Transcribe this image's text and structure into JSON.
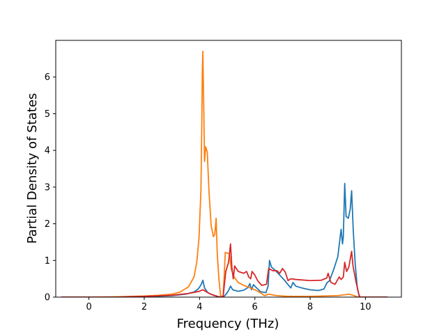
{
  "chart_data": {
    "type": "line",
    "title": "",
    "xlabel": "Frequency (THz)",
    "ylabel": "Partial Density of States",
    "xlim": [
      -1.2,
      11.3
    ],
    "ylim": [
      0,
      7.0
    ],
    "xticks": [
      0,
      2,
      4,
      6,
      8,
      10
    ],
    "yticks": [
      0,
      1,
      2,
      3,
      4,
      5,
      6
    ],
    "grid": false,
    "legend": "none",
    "series": [
      {
        "color": "#1f77b4",
        "points": [
          [
            -1.0,
            0.0
          ],
          [
            0.0,
            0.0
          ],
          [
            1.0,
            0.0
          ],
          [
            2.0,
            0.01
          ],
          [
            3.0,
            0.04
          ],
          [
            3.5,
            0.08
          ],
          [
            3.8,
            0.14
          ],
          [
            3.95,
            0.22
          ],
          [
            4.05,
            0.33
          ],
          [
            4.12,
            0.46
          ],
          [
            4.18,
            0.25
          ],
          [
            4.3,
            0.12
          ],
          [
            4.5,
            0.05
          ],
          [
            4.7,
            0.01
          ],
          [
            4.85,
            0.0
          ],
          [
            4.95,
            0.07
          ],
          [
            5.05,
            0.18
          ],
          [
            5.12,
            0.3
          ],
          [
            5.2,
            0.2
          ],
          [
            5.4,
            0.16
          ],
          [
            5.6,
            0.19
          ],
          [
            5.75,
            0.26
          ],
          [
            5.82,
            0.37
          ],
          [
            5.88,
            0.2
          ],
          [
            5.95,
            0.34
          ],
          [
            6.05,
            0.26
          ],
          [
            6.2,
            0.15
          ],
          [
            6.4,
            0.12
          ],
          [
            6.48,
            0.3
          ],
          [
            6.53,
            1.0
          ],
          [
            6.6,
            0.82
          ],
          [
            6.75,
            0.72
          ],
          [
            6.9,
            0.6
          ],
          [
            7.05,
            0.48
          ],
          [
            7.2,
            0.34
          ],
          [
            7.3,
            0.25
          ],
          [
            7.38,
            0.4
          ],
          [
            7.48,
            0.3
          ],
          [
            7.7,
            0.25
          ],
          [
            8.0,
            0.2
          ],
          [
            8.3,
            0.18
          ],
          [
            8.5,
            0.22
          ],
          [
            8.6,
            0.38
          ],
          [
            8.7,
            0.45
          ],
          [
            8.85,
            0.75
          ],
          [
            9.0,
            1.1
          ],
          [
            9.08,
            1.6
          ],
          [
            9.12,
            1.85
          ],
          [
            9.17,
            1.45
          ],
          [
            9.2,
            1.65
          ],
          [
            9.25,
            3.1
          ],
          [
            9.3,
            2.2
          ],
          [
            9.38,
            2.15
          ],
          [
            9.45,
            2.4
          ],
          [
            9.5,
            2.9
          ],
          [
            9.56,
            1.8
          ],
          [
            9.63,
            0.9
          ],
          [
            9.7,
            0.3
          ],
          [
            9.78,
            0.0
          ],
          [
            10.8,
            0.0
          ]
        ]
      },
      {
        "color": "#ff7f0e",
        "points": [
          [
            -1.0,
            0.0
          ],
          [
            0.0,
            0.0
          ],
          [
            1.0,
            0.01
          ],
          [
            2.0,
            0.03
          ],
          [
            2.5,
            0.05
          ],
          [
            3.0,
            0.08
          ],
          [
            3.3,
            0.14
          ],
          [
            3.6,
            0.28
          ],
          [
            3.8,
            0.55
          ],
          [
            3.9,
            0.95
          ],
          [
            3.98,
            1.6
          ],
          [
            4.05,
            2.9
          ],
          [
            4.08,
            4.6
          ],
          [
            4.1,
            6.1
          ],
          [
            4.12,
            6.7
          ],
          [
            4.15,
            5.3
          ],
          [
            4.18,
            3.7
          ],
          [
            4.22,
            4.1
          ],
          [
            4.28,
            3.95
          ],
          [
            4.34,
            2.9
          ],
          [
            4.42,
            1.95
          ],
          [
            4.5,
            1.65
          ],
          [
            4.55,
            1.7
          ],
          [
            4.6,
            2.15
          ],
          [
            4.64,
            1.2
          ],
          [
            4.7,
            0.5
          ],
          [
            4.76,
            0.05
          ],
          [
            4.85,
            0.0
          ],
          [
            4.9,
            0.7
          ],
          [
            4.93,
            1.22
          ],
          [
            5.0,
            1.2
          ],
          [
            5.08,
            1.18
          ],
          [
            5.15,
            0.75
          ],
          [
            5.25,
            0.55
          ],
          [
            5.4,
            0.4
          ],
          [
            5.6,
            0.32
          ],
          [
            5.8,
            0.26
          ],
          [
            6.0,
            0.2
          ],
          [
            6.2,
            0.12
          ],
          [
            6.35,
            0.04
          ],
          [
            6.5,
            0.08
          ],
          [
            6.8,
            0.04
          ],
          [
            7.2,
            0.02
          ],
          [
            8.0,
            0.02
          ],
          [
            9.0,
            0.04
          ],
          [
            9.4,
            0.08
          ],
          [
            9.55,
            0.05
          ],
          [
            9.7,
            0.01
          ],
          [
            9.8,
            0.0
          ],
          [
            10.8,
            0.0
          ]
        ]
      },
      {
        "color": "#d62728",
        "points": [
          [
            -1.0,
            0.0
          ],
          [
            0.0,
            0.0
          ],
          [
            1.0,
            0.0
          ],
          [
            2.0,
            0.02
          ],
          [
            3.0,
            0.05
          ],
          [
            3.6,
            0.1
          ],
          [
            4.0,
            0.16
          ],
          [
            4.12,
            0.2
          ],
          [
            4.4,
            0.08
          ],
          [
            4.7,
            0.01
          ],
          [
            4.85,
            0.0
          ],
          [
            4.95,
            0.7
          ],
          [
            5.05,
            0.95
          ],
          [
            5.12,
            1.45
          ],
          [
            5.17,
            0.8
          ],
          [
            5.22,
            0.5
          ],
          [
            5.27,
            0.85
          ],
          [
            5.4,
            0.7
          ],
          [
            5.6,
            0.65
          ],
          [
            5.7,
            0.7
          ],
          [
            5.78,
            0.55
          ],
          [
            5.85,
            0.5
          ],
          [
            5.9,
            0.7
          ],
          [
            6.0,
            0.6
          ],
          [
            6.1,
            0.45
          ],
          [
            6.25,
            0.32
          ],
          [
            6.42,
            0.35
          ],
          [
            6.5,
            0.78
          ],
          [
            6.65,
            0.72
          ],
          [
            6.8,
            0.72
          ],
          [
            6.9,
            0.65
          ],
          [
            7.0,
            0.78
          ],
          [
            7.1,
            0.68
          ],
          [
            7.2,
            0.45
          ],
          [
            7.3,
            0.5
          ],
          [
            7.5,
            0.48
          ],
          [
            8.0,
            0.45
          ],
          [
            8.4,
            0.46
          ],
          [
            8.6,
            0.52
          ],
          [
            8.65,
            0.65
          ],
          [
            8.75,
            0.4
          ],
          [
            8.9,
            0.35
          ],
          [
            9.05,
            0.55
          ],
          [
            9.12,
            0.48
          ],
          [
            9.2,
            0.55
          ],
          [
            9.25,
            0.95
          ],
          [
            9.32,
            0.7
          ],
          [
            9.4,
            0.82
          ],
          [
            9.5,
            1.25
          ],
          [
            9.55,
            0.85
          ],
          [
            9.65,
            0.45
          ],
          [
            9.75,
            0.1
          ],
          [
            9.8,
            0.0
          ],
          [
            10.8,
            0.0
          ]
        ]
      }
    ]
  }
}
